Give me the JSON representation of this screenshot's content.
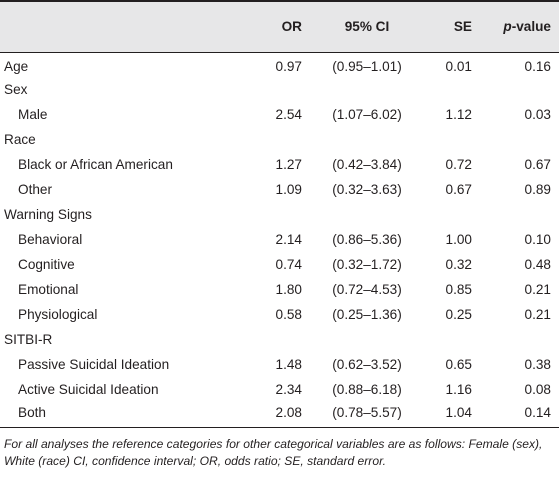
{
  "table": {
    "headers": {
      "label": "",
      "or": "OR",
      "ci": "95% CI",
      "se": "SE",
      "p_prefix": "p",
      "p_suffix": "-value"
    },
    "rows": [
      {
        "label": "Age",
        "or": "0.97",
        "ci": "(0.95–1.01)",
        "se": "0.01",
        "p": "0.16"
      },
      {
        "label": "Sex",
        "or": "",
        "ci": "",
        "se": "",
        "p": ""
      },
      {
        "label": "Male",
        "or": "2.54",
        "ci": "(1.07–6.02)",
        "se": "1.12",
        "p": "0.03"
      },
      {
        "label": "Race",
        "or": "",
        "ci": "",
        "se": "",
        "p": ""
      },
      {
        "label": "Black or African American",
        "or": "1.27",
        "ci": "(0.42–3.84)",
        "se": "0.72",
        "p": "0.67"
      },
      {
        "label": "Other",
        "or": "1.09",
        "ci": "(0.32–3.63)",
        "se": "0.67",
        "p": "0.89"
      },
      {
        "label": "Warning Signs",
        "or": "",
        "ci": "",
        "se": "",
        "p": ""
      },
      {
        "label": "Behavioral",
        "or": "2.14",
        "ci": "(0.86–5.36)",
        "se": "1.00",
        "p": "0.10"
      },
      {
        "label": "Cognitive",
        "or": "0.74",
        "ci": "(0.32–1.72)",
        "se": "0.32",
        "p": "0.48"
      },
      {
        "label": "Emotional",
        "or": "1.80",
        "ci": "(0.72–4.53)",
        "se": "0.85",
        "p": "0.21"
      },
      {
        "label": "Physiological",
        "or": "0.58",
        "ci": "(0.25–1.36)",
        "se": "0.25",
        "p": "0.21"
      },
      {
        "label": "SITBI-R",
        "or": "",
        "ci": "",
        "se": "",
        "p": ""
      },
      {
        "label": "Passive Suicidal Ideation",
        "or": "1.48",
        "ci": "(0.62–3.52)",
        "se": "0.65",
        "p": "0.38"
      },
      {
        "label": "Active Suicidal Ideation",
        "or": "2.34",
        "ci": "(0.88–6.18)",
        "se": "1.16",
        "p": "0.08"
      },
      {
        "label": "Both",
        "or": "2.08",
        "ci": "(0.78–5.57)",
        "se": "1.04",
        "p": "0.14"
      }
    ]
  },
  "footnote": "For all analyses the reference categories for other categorical variables are as follows: Female (sex), White (race) CI, confidence interval; OR, odds ratio; SE, standard error."
}
